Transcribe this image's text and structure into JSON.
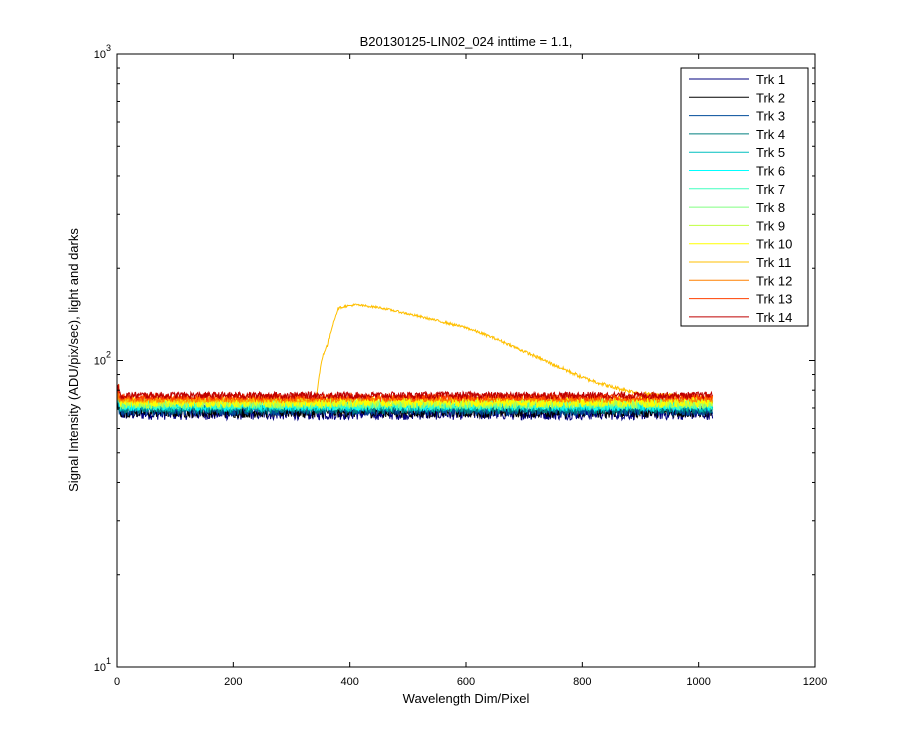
{
  "chart_data": {
    "type": "line",
    "title": "B20130125-LIN02_024 inttime = 1.1,",
    "xlabel": "Wavelength Dim/Pixel",
    "ylabel": "Signal Intensity (ADU/pix/sec), light and darks",
    "xlim": [
      0,
      1200
    ],
    "ylim": [
      10,
      1000
    ],
    "yscale": "log",
    "x_ticks": [
      "0",
      "200",
      "400",
      "600",
      "800",
      "1000",
      "1200"
    ],
    "x_tick_values": [
      0,
      200,
      400,
      600,
      800,
      1000,
      1200
    ],
    "y_ticks": [
      {
        "base": "10",
        "exp": "1",
        "value": 10
      },
      {
        "base": "10",
        "exp": "2",
        "value": 100
      },
      {
        "base": "10",
        "exp": "3",
        "value": 1000
      }
    ],
    "grid": false,
    "legend_position": "top-right",
    "series": [
      {
        "name": "Trk 1",
        "color": "#00007f",
        "x": [
          0,
          1024
        ],
        "y": [
          67,
          67
        ],
        "noise": 3
      },
      {
        "name": "Trk 2",
        "color": "#000000",
        "x": [
          0,
          1024
        ],
        "y": [
          68,
          68
        ],
        "noise": 3
      },
      {
        "name": "Trk 3",
        "color": "#004c99",
        "x": [
          0,
          1024
        ],
        "y": [
          69,
          69
        ],
        "noise": 3
      },
      {
        "name": "Trk 4",
        "color": "#007f7f",
        "x": [
          0,
          1024
        ],
        "y": [
          70,
          70
        ],
        "noise": 3
      },
      {
        "name": "Trk 5",
        "color": "#00bfbf",
        "x": [
          0,
          1024
        ],
        "y": [
          71,
          71
        ],
        "noise": 3
      },
      {
        "name": "Trk 6",
        "color": "#00ffff",
        "x": [
          0,
          1024
        ],
        "y": [
          71.5,
          71.5
        ],
        "noise": 3
      },
      {
        "name": "Trk 7",
        "color": "#40ffbf",
        "x": [
          0,
          1024
        ],
        "y": [
          72,
          72
        ],
        "noise": 3
      },
      {
        "name": "Trk 8",
        "color": "#80ff80",
        "x": [
          0,
          1024
        ],
        "y": [
          72.5,
          72.5
        ],
        "noise": 3
      },
      {
        "name": "Trk 9",
        "color": "#bfff40",
        "x": [
          0,
          1024
        ],
        "y": [
          73,
          73
        ],
        "noise": 3
      },
      {
        "name": "Trk 10",
        "color": "#ffff00",
        "x": [
          0,
          1024
        ],
        "y": [
          73.5,
          73.5
        ],
        "noise": 3
      },
      {
        "name": "Trk 11",
        "color": "#ffbf00",
        "x": [
          0,
          340,
          345,
          350,
          355,
          362,
          370,
          380,
          390,
          410,
          450,
          500,
          550,
          600,
          650,
          700,
          750,
          800,
          850,
          900,
          950,
          1000,
          1024
        ],
        "y": [
          74,
          74,
          80,
          95,
          105,
          112,
          130,
          148,
          150,
          152,
          149,
          142,
          135,
          128,
          118,
          107,
          97,
          88,
          82,
          78,
          77,
          76,
          76
        ],
        "noise": 1.2
      },
      {
        "name": "Trk 12",
        "color": "#ff8000",
        "x": [
          0,
          1024
        ],
        "y": [
          75,
          75
        ],
        "noise": 2
      },
      {
        "name": "Trk 13",
        "color": "#ff4000",
        "x": [
          0,
          1024
        ],
        "y": [
          76,
          76
        ],
        "noise": 2
      },
      {
        "name": "Trk 14",
        "color": "#bf0000",
        "x": [
          0,
          1024
        ],
        "y": [
          77,
          77
        ],
        "noise": 2
      }
    ]
  }
}
